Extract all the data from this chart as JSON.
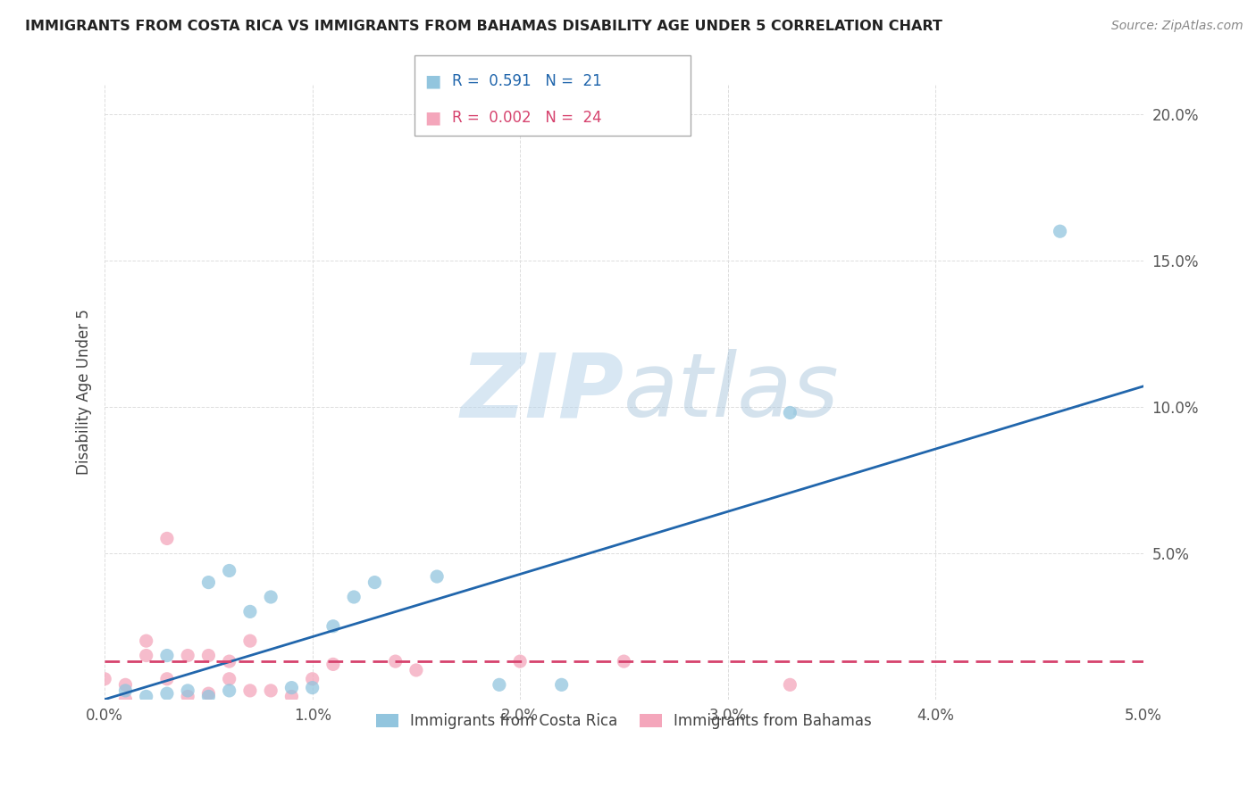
{
  "title": "IMMIGRANTS FROM COSTA RICA VS IMMIGRANTS FROM BAHAMAS DISABILITY AGE UNDER 5 CORRELATION CHART",
  "source": "Source: ZipAtlas.com",
  "ylabel": "Disability Age Under 5",
  "legend_label1": "Immigrants from Costa Rica",
  "legend_label2": "Immigrants from Bahamas",
  "R1": 0.591,
  "N1": 21,
  "R2": 0.002,
  "N2": 24,
  "color1": "#92c5de",
  "color2": "#f4a6bb",
  "trendline1_color": "#2166ac",
  "trendline2_color": "#d6436e",
  "xlim": [
    0.0,
    0.05
  ],
  "ylim": [
    0.0,
    0.21
  ],
  "xticks": [
    0.0,
    0.01,
    0.02,
    0.03,
    0.04,
    0.05
  ],
  "xtick_labels": [
    "0.0%",
    "1.0%",
    "2.0%",
    "3.0%",
    "4.0%",
    "5.0%"
  ],
  "yticks": [
    0.0,
    0.05,
    0.1,
    0.15,
    0.2
  ],
  "ytick_labels": [
    "",
    "5.0%",
    "10.0%",
    "15.0%",
    "20.0%"
  ],
  "scatter1_x": [
    0.001,
    0.002,
    0.003,
    0.003,
    0.004,
    0.005,
    0.005,
    0.006,
    0.006,
    0.007,
    0.008,
    0.009,
    0.01,
    0.011,
    0.012,
    0.013,
    0.016,
    0.019,
    0.022,
    0.033,
    0.046
  ],
  "scatter1_y": [
    0.003,
    0.001,
    0.002,
    0.015,
    0.003,
    0.001,
    0.04,
    0.003,
    0.044,
    0.03,
    0.035,
    0.004,
    0.004,
    0.025,
    0.035,
    0.04,
    0.042,
    0.005,
    0.005,
    0.098,
    0.16
  ],
  "scatter2_x": [
    0.0,
    0.001,
    0.001,
    0.002,
    0.002,
    0.003,
    0.003,
    0.004,
    0.004,
    0.005,
    0.005,
    0.006,
    0.006,
    0.007,
    0.007,
    0.008,
    0.009,
    0.01,
    0.011,
    0.014,
    0.015,
    0.02,
    0.025,
    0.033
  ],
  "scatter2_y": [
    0.007,
    0.0,
    0.005,
    0.015,
    0.02,
    0.007,
    0.055,
    0.001,
    0.015,
    0.015,
    0.002,
    0.007,
    0.013,
    0.003,
    0.02,
    0.003,
    0.001,
    0.007,
    0.012,
    0.013,
    0.01,
    0.013,
    0.013,
    0.005
  ],
  "trendline1_x": [
    0.0,
    0.05
  ],
  "trendline1_y": [
    0.0,
    0.107
  ],
  "trendline2_x": [
    0.0,
    0.05
  ],
  "trendline2_y": [
    0.013,
    0.013
  ],
  "watermark_zip": "ZIP",
  "watermark_atlas": "atlas",
  "background_color": "#ffffff",
  "grid_color": "#dddddd"
}
